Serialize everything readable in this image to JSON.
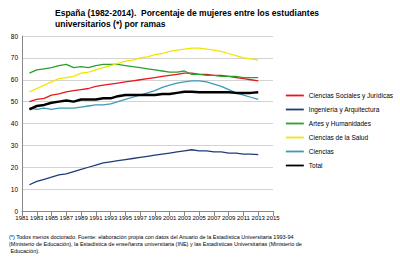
{
  "chart_data": {
    "type": "line",
    "title": "España (1982-2014).  Porcentaje de mujeres entre los estudiantes universitarios (*) por ramas",
    "footnote": "(*) Todos menos doctorado. Fuente: elaboración propia con datos del Anuario de la Estadística Universitaria 1993-94 (Ministerio de Educación), la Estadística de enseñanza universitaria (INE) y las Estadísticas Universitarias (Ministerio de Educación).",
    "x": [
      1982,
      1983,
      1984,
      1985,
      1986,
      1987,
      1988,
      1989,
      1990,
      1991,
      1992,
      1993,
      1994,
      1995,
      1996,
      1997,
      1998,
      1999,
      2000,
      2001,
      2002,
      2003,
      2004,
      2005,
      2006,
      2007,
      2008,
      2009,
      2010,
      2011,
      2012,
      2013
    ],
    "series": [
      {
        "name": "Ciencias Sociales y Jurídicas",
        "color": "#e8151b",
        "values": [
          50,
          51,
          51.5,
          53,
          53.5,
          54.5,
          55,
          55.5,
          56,
          57,
          57.5,
          58,
          58.5,
          59,
          59.5,
          60,
          60.5,
          61,
          61.5,
          62,
          62.5,
          63,
          63,
          62.5,
          62.5,
          62,
          62,
          61.5,
          61,
          60.5,
          60,
          59.5
        ]
      },
      {
        "name": "Ingeniería y Arquitectura",
        "color": "#1f3c78",
        "values": [
          12,
          13.5,
          14.5,
          15.5,
          16.5,
          17,
          18,
          19,
          20,
          21,
          22,
          22.5,
          23,
          23.5,
          24,
          24.5,
          25,
          25.5,
          26,
          26.5,
          27,
          27.5,
          28,
          27.5,
          27.5,
          27,
          27,
          26.5,
          26.5,
          26,
          26,
          25.8
        ]
      },
      {
        "name": "Artes y Humanidades",
        "color": "#2ca02c",
        "values": [
          63,
          64.5,
          65,
          65.5,
          66.5,
          67,
          65.5,
          66,
          65.5,
          66.5,
          67,
          67,
          67,
          66.5,
          66,
          65.5,
          65,
          64.5,
          64,
          63.5,
          63.5,
          64,
          62.5,
          62.5,
          62,
          62,
          61.5,
          61.5,
          61.5,
          61,
          61,
          61
        ]
      },
      {
        "name": "Ciencias de la Salud",
        "color": "#f2e600",
        "values": [
          54.5,
          56,
          57.5,
          59,
          60.5,
          61,
          61.5,
          63,
          63.5,
          64.5,
          65.5,
          66.5,
          67.5,
          68.5,
          69,
          70,
          70.5,
          71.5,
          72,
          73,
          73.5,
          74,
          74.5,
          74.5,
          74,
          73.5,
          73,
          72,
          71,
          70,
          69.5,
          69
        ]
      },
      {
        "name": "Ciencias",
        "color": "#3a9bb5",
        "values": [
          47,
          46.5,
          47,
          46.5,
          47,
          47,
          47,
          47.5,
          48,
          48.5,
          48.5,
          49,
          50,
          51,
          52,
          53,
          54,
          55,
          56.5,
          57.5,
          58.5,
          59,
          59.5,
          59.5,
          59,
          58,
          57,
          55.5,
          54,
          53,
          52,
          51
        ]
      },
      {
        "name": "Total",
        "color": "#000000",
        "values": [
          46.5,
          48,
          48.5,
          49.5,
          50,
          50.5,
          50,
          51,
          51,
          51,
          51.5,
          51.5,
          52.5,
          53,
          53,
          53,
          53,
          53,
          53.5,
          53.5,
          54,
          54.5,
          54.5,
          54.3,
          54.3,
          54.3,
          54.3,
          54.3,
          54,
          54,
          54,
          54.3
        ]
      }
    ],
    "xlim": [
      1981,
      2015
    ],
    "xticks": [
      1981,
      1983,
      1985,
      1987,
      1989,
      1991,
      1993,
      1995,
      1997,
      1999,
      2001,
      2003,
      2005,
      2007,
      2009,
      2011,
      2013,
      2015
    ],
    "ylim": [
      0,
      80
    ],
    "yticks": [
      0,
      10,
      20,
      30,
      40,
      50,
      60,
      70,
      80
    ],
    "grid": true,
    "legend": "right"
  }
}
